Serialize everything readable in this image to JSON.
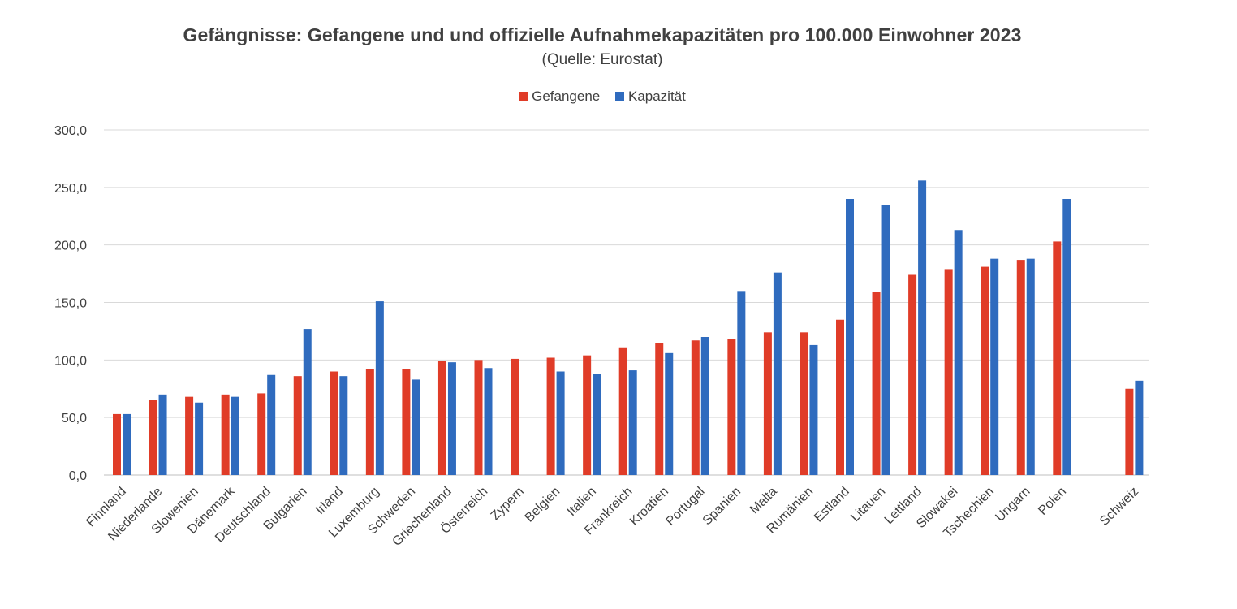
{
  "chart_data": {
    "type": "bar",
    "title": "Gefängnisse: Gefangene und und offizielle Aufnahmekapazitäten pro 100.000 Einwohner 2023",
    "subtitle": "(Quelle: Eurostat)",
    "categories": [
      "Finnland",
      "Niederlande",
      "Slowenien",
      "Dänemark",
      "Deutschland",
      "Bulgarien",
      "Irland",
      "Luxemburg",
      "Schweden",
      "Griechenland",
      "Österreich",
      "Zypern",
      "Belgien",
      "Italien",
      "Frankreich",
      "Kroatien",
      "Portugal",
      "Spanien",
      "Malta",
      "Rumänien",
      "Estland",
      "Litauen",
      "Lettland",
      "Slowakei",
      "Tschechien",
      "Ungarn",
      "Polen",
      "Schweiz"
    ],
    "series": [
      {
        "name": "Gefangene",
        "color": "#E03C28",
        "values": [
          53,
          65,
          68,
          70,
          71,
          86,
          90,
          92,
          92,
          99,
          100,
          101,
          102,
          104,
          111,
          115,
          117,
          118,
          124,
          124,
          135,
          159,
          174,
          179,
          181,
          187,
          203,
          75
        ]
      },
      {
        "name": "Kapazität",
        "color": "#2F6BBE",
        "values": [
          53,
          70,
          63,
          68,
          87,
          127,
          86,
          151,
          83,
          98,
          93,
          null,
          90,
          88,
          91,
          106,
          120,
          160,
          176,
          113,
          240,
          235,
          256,
          213,
          188,
          188,
          240,
          82
        ]
      }
    ],
    "gap_before_last": true,
    "ylim": [
      0,
      300
    ],
    "yticks": [
      "0,0",
      "50,0",
      "100,0",
      "150,0",
      "200,0",
      "250,0",
      "300,0"
    ],
    "ytick_values": [
      0,
      50,
      100,
      150,
      200,
      250,
      300
    ],
    "grid": true,
    "legend_position": "top",
    "xlabel": "",
    "ylabel": ""
  }
}
